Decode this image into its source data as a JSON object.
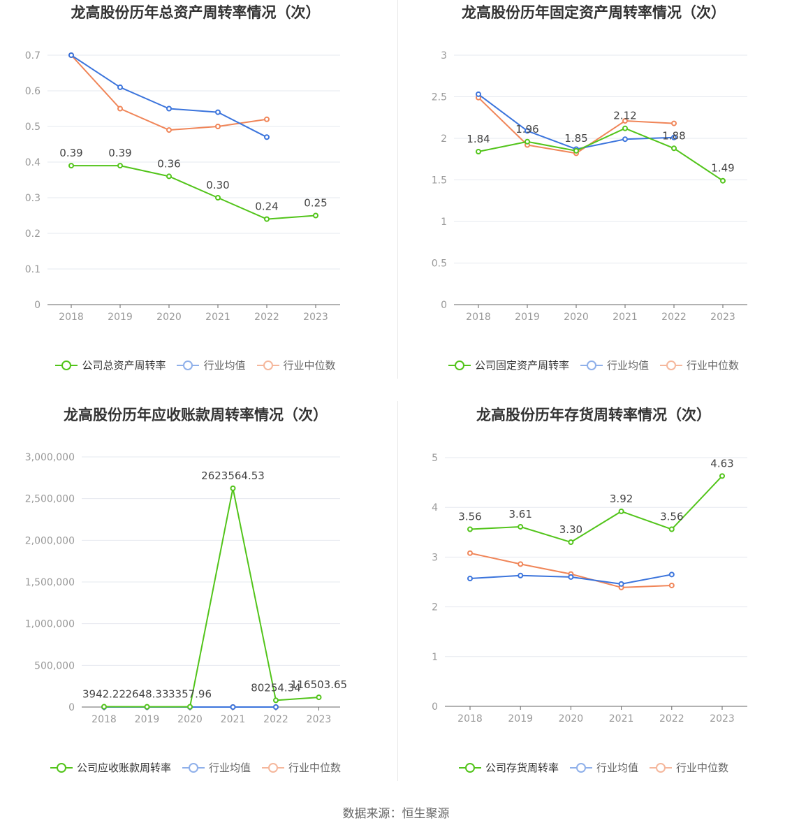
{
  "chart_data": [
    {
      "type": "line",
      "title": "龙高股份历年总资产周转率情况（次）",
      "categories": [
        "2018",
        "2019",
        "2020",
        "2021",
        "2022",
        "2023"
      ],
      "yticks": [
        "0",
        "0.1",
        "0.2",
        "0.3",
        "0.4",
        "0.5",
        "0.6",
        "0.7"
      ],
      "ylim": [
        0,
        0.7
      ],
      "grid": true,
      "legend_position": "bottom",
      "series": [
        {
          "name": "公司总资产周转率",
          "color": "#52c41a",
          "values": [
            0.39,
            0.39,
            0.36,
            0.3,
            0.24,
            0.25
          ],
          "labels": [
            "0.39",
            "0.39",
            "0.36",
            "0.30",
            "0.24",
            "0.25"
          ]
        },
        {
          "name": "行业均值",
          "color": "#3b74dc",
          "values": [
            0.7,
            0.61,
            0.55,
            0.54,
            0.47,
            null
          ]
        },
        {
          "name": "行业中位数",
          "color": "#f08558",
          "values": [
            0.7,
            0.55,
            0.49,
            0.5,
            0.52,
            null
          ]
        }
      ]
    },
    {
      "type": "line",
      "title": "龙高股份历年固定资产周转率情况（次）",
      "categories": [
        "2018",
        "2019",
        "2020",
        "2021",
        "2022",
        "2023"
      ],
      "yticks": [
        "0",
        "0.5",
        "1",
        "1.5",
        "2",
        "2.5",
        "3"
      ],
      "ylim": [
        0,
        3
      ],
      "grid": true,
      "legend_position": "bottom",
      "series": [
        {
          "name": "公司固定资产周转率",
          "color": "#52c41a",
          "values": [
            1.84,
            1.96,
            1.85,
            2.12,
            1.88,
            1.49
          ],
          "labels": [
            "1.84",
            "1.96",
            "1.85",
            "2.12",
            "1.88",
            "1.49"
          ]
        },
        {
          "name": "行业均值",
          "color": "#3b74dc",
          "values": [
            2.53,
            2.09,
            1.87,
            1.99,
            2.01,
            null
          ]
        },
        {
          "name": "行业中位数",
          "color": "#f08558",
          "values": [
            2.49,
            1.92,
            1.82,
            2.21,
            2.18,
            null
          ]
        }
      ]
    },
    {
      "type": "line",
      "title": "龙高股份历年应收账款周转率情况（次）",
      "categories": [
        "2018",
        "2019",
        "2020",
        "2021",
        "2022",
        "2023"
      ],
      "yticks": [
        "0",
        "500,000",
        "1,000,000",
        "1,500,000",
        "2,000,000",
        "2,500,000",
        "3,000,000"
      ],
      "ylim": [
        0,
        3000000
      ],
      "grid": true,
      "legend_position": "bottom",
      "series": [
        {
          "name": "公司应收账款周转率",
          "color": "#52c41a",
          "values": [
            3942.22,
            2648.33,
            3357.96,
            2623564.53,
            80254.34,
            116503.65
          ],
          "labels": [
            "3942.22",
            "2648.33",
            "3357.96",
            "2623564.53",
            "80254.34",
            "116503.65"
          ]
        },
        {
          "name": "行业均值",
          "color": "#3b74dc",
          "values": [
            8,
            8,
            8,
            8,
            8,
            null
          ]
        },
        {
          "name": "行业中位数",
          "color": "#f08558",
          "values": [
            6,
            6,
            6,
            6,
            6,
            null
          ]
        }
      ]
    },
    {
      "type": "line",
      "title": "龙高股份历年存货周转率情况（次）",
      "categories": [
        "2018",
        "2019",
        "2020",
        "2021",
        "2022",
        "2023"
      ],
      "yticks": [
        "0",
        "1",
        "2",
        "3",
        "4",
        "5"
      ],
      "ylim": [
        0,
        5
      ],
      "grid": true,
      "legend_position": "bottom",
      "series": [
        {
          "name": "公司存货周转率",
          "color": "#52c41a",
          "values": [
            3.56,
            3.61,
            3.3,
            3.92,
            3.56,
            4.63
          ],
          "labels": [
            "3.56",
            "3.61",
            "3.30",
            "3.92",
            "3.56",
            "4.63"
          ]
        },
        {
          "name": "行业均值",
          "color": "#3b74dc",
          "values": [
            2.57,
            2.63,
            2.6,
            2.46,
            2.65,
            null
          ]
        },
        {
          "name": "行业中位数",
          "color": "#f08558",
          "values": [
            3.08,
            2.86,
            2.66,
            2.39,
            2.43,
            null
          ]
        }
      ]
    }
  ],
  "source": "数据来源：恒生聚源"
}
